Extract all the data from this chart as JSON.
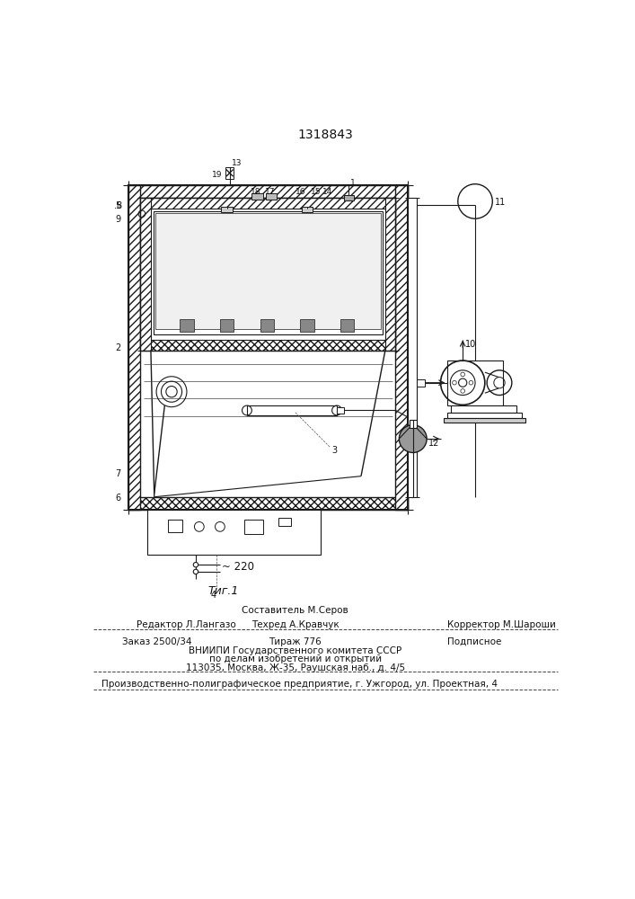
{
  "patent_number": "1318843",
  "fig_label": "Τиг.1",
  "voltage_label": "~ 220",
  "editor_line": "Редактор Л.Лангазо",
  "composer_line": "Составитель М.Серов",
  "techred_line": "Техред А.Кравчук",
  "corrector_line": "Корректор М.Шароши",
  "order_line": "Заказ 2500/34",
  "tirazh_line": "Тираж 776",
  "podpisnoe_line": "Подписное",
  "vniiipi_line1": "ВНИИПИ Государственного комитета СССР",
  "vniiipi_line2": "по делам изобретений и открытий",
  "vniiipi_line3": "113035, Москва, Ж-35, Раушская наб., д. 4/5",
  "poligraf_line": "Производственно-полиграфическое предприятие, г. Ужгород, ул. Проектная, 4",
  "bg_color": "#ffffff",
  "line_color": "#1a1a1a",
  "text_color": "#111111"
}
